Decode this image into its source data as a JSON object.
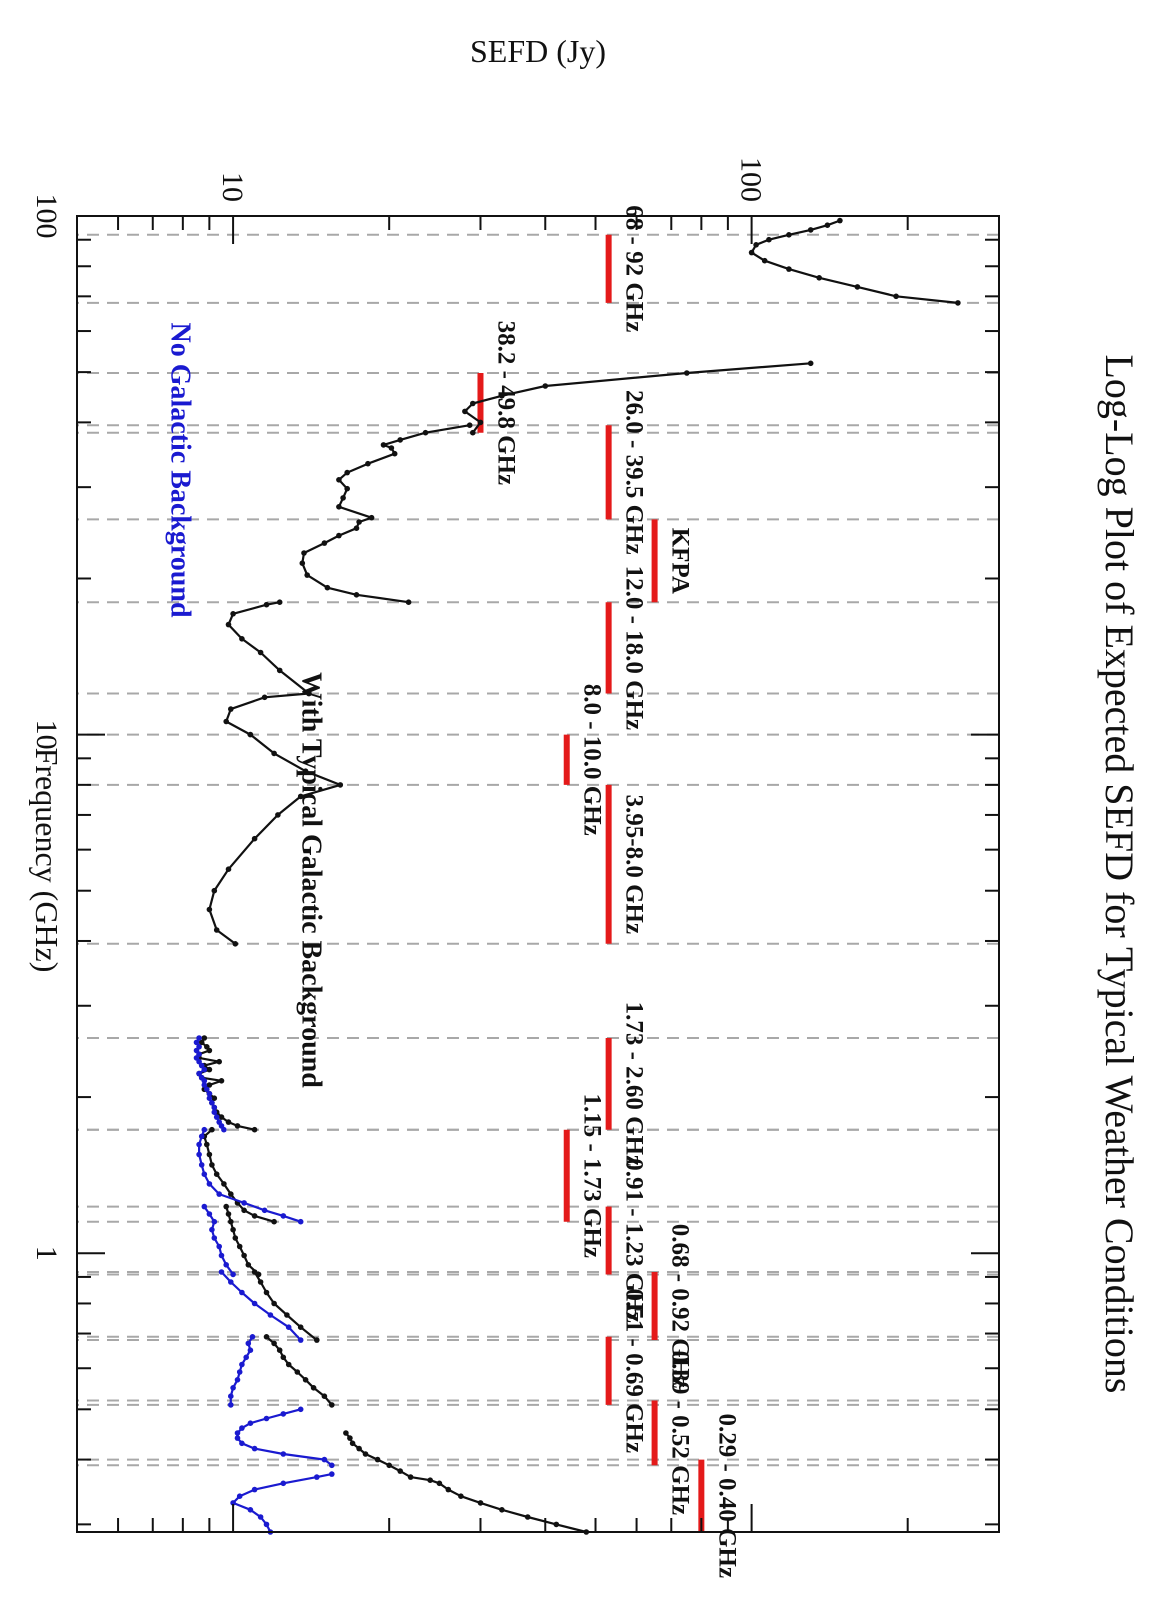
{
  "chart_data": {
    "type": "line",
    "title": "Log-Log Plot of Expected SEFD for Typical Weather Conditions",
    "xlabel": "Frequency (GHz)",
    "ylabel": "SEFD (Jy)",
    "x_scale": "log",
    "y_scale": "log",
    "xlim": [
      0.29,
      100
    ],
    "ylim": [
      5,
      300
    ],
    "x_ticks": [
      {
        "value": 1,
        "label": "1"
      },
      {
        "value": 10,
        "label": "10"
      },
      {
        "value": 100,
        "label": "100"
      }
    ],
    "y_ticks": [
      {
        "value": 10,
        "label": "10"
      },
      {
        "value": 100,
        "label": "100"
      }
    ],
    "grid": "dashed vertical lines at band edges",
    "band_edges": [
      0.29,
      0.4,
      0.39,
      0.52,
      0.51,
      0.69,
      0.68,
      0.92,
      0.91,
      1.23,
      1.15,
      1.73,
      1.73,
      2.6,
      3.95,
      8.0,
      10.0,
      12.0,
      18.0,
      26.0,
      39.5,
      38.2,
      49.8,
      68,
      92
    ],
    "bands": [
      {
        "label": "0.29 - 0.40 GHz",
        "fmin": 0.29,
        "fmax": 0.4,
        "level": 80
      },
      {
        "label": "0.39 - 0.52 GHz",
        "fmin": 0.39,
        "fmax": 0.52,
        "level": 65
      },
      {
        "label": "0.51 - 0.69 GHz",
        "fmin": 0.51,
        "fmax": 0.69,
        "level": 53
      },
      {
        "label": "0.68 - 0.92 GHz",
        "fmin": 0.68,
        "fmax": 0.92,
        "level": 65
      },
      {
        "label": "0.91 - 1.23 GHz",
        "fmin": 0.91,
        "fmax": 1.23,
        "level": 53
      },
      {
        "label": "1.15 - 1.73 GHz",
        "fmin": 1.15,
        "fmax": 1.73,
        "level": 44
      },
      {
        "label": "1.73 - 2.60 GHz",
        "fmin": 1.73,
        "fmax": 2.6,
        "level": 53
      },
      {
        "label": "3.95-8.0 GHz",
        "fmin": 3.95,
        "fmax": 8.0,
        "level": 53
      },
      {
        "label": "8.0 - 10.0 GHz",
        "fmin": 8.0,
        "fmax": 10.0,
        "level": 44
      },
      {
        "label": "12.0 - 18.0 GHz",
        "fmin": 12.0,
        "fmax": 18.0,
        "level": 53
      },
      {
        "label": "KFPA",
        "fmin": 18.0,
        "fmax": 26.0,
        "level": 65
      },
      {
        "label": "26.0 - 39.5 GHz",
        "fmin": 26.0,
        "fmax": 39.5,
        "level": 53
      },
      {
        "label": "38.2 - 49.8 GHz",
        "fmin": 38.2,
        "fmax": 49.8,
        "level": 30
      },
      {
        "label": "68 - 92 GHz",
        "fmin": 68,
        "fmax": 92,
        "level": 53
      }
    ],
    "annotations": [
      {
        "text": "With Typical Galactic Background",
        "color": "#111111"
      },
      {
        "text": "No Galactic Background",
        "color": "#1a1ad0"
      }
    ],
    "series": [
      {
        "name": "With Typical Galactic Background",
        "color": "#111111",
        "segments": [
          [
            [
              0.29,
              48
            ],
            [
              0.3,
              42
            ],
            [
              0.31,
              37
            ],
            [
              0.32,
              33
            ],
            [
              0.33,
              30
            ],
            [
              0.34,
              27.5
            ],
            [
              0.35,
              26
            ],
            [
              0.36,
              25
            ],
            [
              0.365,
              24
            ],
            [
              0.37,
              22
            ],
            [
              0.38,
              21
            ],
            [
              0.39,
              20
            ],
            [
              0.4,
              19
            ],
            [
              0.41,
              18
            ],
            [
              0.42,
              17.5
            ],
            [
              0.43,
              17
            ],
            [
              0.44,
              16.8
            ],
            [
              0.45,
              16.5
            ]
          ],
          [
            [
              0.51,
              15.5
            ],
            [
              0.53,
              15
            ],
            [
              0.55,
              14.3
            ],
            [
              0.57,
              13.8
            ],
            [
              0.59,
              13.3
            ],
            [
              0.61,
              12.8
            ],
            [
              0.63,
              12.5
            ],
            [
              0.65,
              12.3
            ],
            [
              0.67,
              12
            ],
            [
              0.69,
              11.6
            ]
          ],
          [
            [
              0.68,
              14.5
            ],
            [
              0.72,
              13.5
            ],
            [
              0.76,
              12.7
            ],
            [
              0.8,
              12
            ],
            [
              0.84,
              11.6
            ],
            [
              0.88,
              11.3
            ],
            [
              0.92,
              11
            ]
          ],
          [
            [
              0.91,
              11.2
            ],
            [
              0.95,
              10.7
            ],
            [
              0.99,
              10.5
            ],
            [
              1.03,
              10.3
            ],
            [
              1.07,
              10.1
            ],
            [
              1.11,
              10
            ],
            [
              1.15,
              9.9
            ],
            [
              1.19,
              9.8
            ],
            [
              1.23,
              9.7
            ]
          ],
          [
            [
              1.15,
              12
            ],
            [
              1.18,
              11
            ],
            [
              1.21,
              10.5
            ],
            [
              1.25,
              10.2
            ],
            [
              1.3,
              9.9
            ],
            [
              1.36,
              9.6
            ],
            [
              1.42,
              9.3
            ],
            [
              1.48,
              9.1
            ],
            [
              1.55,
              9.0
            ],
            [
              1.62,
              8.9
            ],
            [
              1.68,
              8.8
            ],
            [
              1.73,
              9.1
            ]
          ],
          [
            [
              1.73,
              11.0
            ],
            [
              1.76,
              10.2
            ],
            [
              1.79,
              9.8
            ],
            [
              1.83,
              9.5
            ],
            [
              1.87,
              9.3
            ],
            [
              1.91,
              9.2
            ],
            [
              1.95,
              9.1
            ],
            [
              1.99,
              9.2
            ],
            [
              2.03,
              9.0
            ],
            [
              2.07,
              8.8
            ],
            [
              2.11,
              9.0
            ],
            [
              2.15,
              9.5
            ],
            [
              2.18,
              8.7
            ],
            [
              2.22,
              8.6
            ],
            [
              2.26,
              9.0
            ],
            [
              2.3,
              8.8
            ],
            [
              2.34,
              9.4
            ],
            [
              2.38,
              8.6
            ],
            [
              2.42,
              8.6
            ],
            [
              2.46,
              9.0
            ],
            [
              2.5,
              8.9
            ],
            [
              2.55,
              8.7
            ],
            [
              2.6,
              8.8
            ]
          ],
          [
            [
              3.95,
              10.1
            ],
            [
              4.2,
              9.3
            ],
            [
              4.6,
              9.0
            ],
            [
              5.0,
              9.2
            ],
            [
              5.5,
              9.8
            ],
            [
              6.3,
              11
            ],
            [
              7.0,
              12.2
            ],
            [
              7.6,
              13.5
            ],
            [
              8.0,
              16.1
            ],
            [
              8.5,
              13.8
            ],
            [
              9.2,
              12.0
            ],
            [
              10.0,
              10.8
            ],
            [
              10.6,
              9.7
            ],
            [
              11.2,
              9.9
            ],
            [
              11.8,
              11.5
            ],
            [
              12.0,
              14.0
            ]
          ],
          [
            [
              12.0,
              14.0
            ],
            [
              13.3,
              12.3
            ],
            [
              14.4,
              11.3
            ],
            [
              15.3,
              10.4
            ],
            [
              16.3,
              9.8
            ],
            [
              17.1,
              10.0
            ],
            [
              17.8,
              11.6
            ],
            [
              18.0,
              12.3
            ]
          ],
          [
            [
              18.0,
              21.8
            ],
            [
              18.6,
              17.3
            ],
            [
              19.2,
              15.2
            ],
            [
              20.3,
              13.9
            ],
            [
              21.4,
              13.6
            ],
            [
              22.4,
              13.7
            ],
            [
              23.4,
              15.0
            ],
            [
              24.2,
              16.0
            ],
            [
              25.0,
              17.3
            ],
            [
              25.7,
              17.5
            ],
            [
              26.2,
              18.5
            ],
            [
              27.5,
              16.0
            ],
            [
              28.6,
              16.3
            ],
            [
              29.8,
              16.6
            ],
            [
              31.0,
              16.0
            ],
            [
              32.0,
              16.6
            ],
            [
              33.3,
              18.2
            ],
            [
              34.8,
              20.5
            ],
            [
              35.7,
              20.2
            ],
            [
              36.2,
              19.5
            ],
            [
              37.0,
              21.0
            ],
            [
              38.2,
              23.5
            ],
            [
              39.5,
              28.6
            ]
          ],
          [
            [
              38.2,
              29
            ],
            [
              40.0,
              30
            ],
            [
              42.0,
              28
            ],
            [
              43.5,
              29
            ],
            [
              45,
              33
            ],
            [
              47,
              40
            ],
            [
              49.8,
              75
            ],
            [
              52,
              130
            ]
          ],
          [
            [
              68,
              250
            ],
            [
              70,
              190
            ],
            [
              73,
              160
            ],
            [
              76,
              135
            ],
            [
              79,
              118
            ],
            [
              82,
              106
            ],
            [
              85,
              100
            ],
            [
              88,
              102
            ],
            [
              90,
              108
            ],
            [
              92,
              118
            ],
            [
              94,
              130
            ],
            [
              96,
              140
            ],
            [
              98,
              148
            ]
          ]
        ]
      },
      {
        "name": "No Galactic Background",
        "color": "#1a1ad0",
        "segments": [
          [
            [
              0.29,
              11.8
            ],
            [
              0.3,
              11.6
            ],
            [
              0.31,
              11.3
            ],
            [
              0.32,
              10.8
            ],
            [
              0.33,
              10
            ],
            [
              0.34,
              10.3
            ],
            [
              0.35,
              11
            ],
            [
              0.36,
              12.5
            ],
            [
              0.37,
              14.5
            ],
            [
              0.375,
              15.5
            ]
          ],
          [
            [
              0.39,
              15.5
            ],
            [
              0.4,
              15
            ],
            [
              0.41,
              12.5
            ],
            [
              0.42,
              11
            ],
            [
              0.43,
              10.4
            ],
            [
              0.44,
              10.2
            ],
            [
              0.45,
              10.2
            ],
            [
              0.46,
              10.4
            ],
            [
              0.47,
              10.8
            ],
            [
              0.48,
              11.6
            ],
            [
              0.49,
              12.5
            ],
            [
              0.5,
              13.5
            ]
          ],
          [
            [
              0.51,
              9.9
            ],
            [
              0.53,
              9.9
            ],
            [
              0.55,
              10.0
            ],
            [
              0.57,
              10.2
            ],
            [
              0.59,
              10.3
            ],
            [
              0.61,
              10.4
            ],
            [
              0.63,
              10.6
            ],
            [
              0.65,
              10.8
            ],
            [
              0.67,
              10.7
            ],
            [
              0.69,
              10.9
            ]
          ],
          [
            [
              0.68,
              13.5
            ],
            [
              0.72,
              12.8
            ],
            [
              0.76,
              11.8
            ],
            [
              0.8,
              11.0
            ],
            [
              0.84,
              10.4
            ],
            [
              0.88,
              9.9
            ],
            [
              0.92,
              9.5
            ]
          ],
          [
            [
              0.91,
              10.0
            ],
            [
              0.95,
              9.7
            ],
            [
              0.99,
              9.5
            ],
            [
              1.03,
              9.4
            ],
            [
              1.07,
              9.2
            ],
            [
              1.11,
              9.1
            ],
            [
              1.15,
              9.2
            ],
            [
              1.19,
              9.0
            ],
            [
              1.23,
              8.8
            ]
          ],
          [
            [
              1.15,
              13.5
            ],
            [
              1.18,
              12.5
            ],
            [
              1.21,
              11.5
            ],
            [
              1.25,
              10.5
            ],
            [
              1.3,
              9.4
            ],
            [
              1.36,
              9.0
            ],
            [
              1.42,
              8.8
            ],
            [
              1.48,
              8.7
            ],
            [
              1.55,
              8.6
            ],
            [
              1.62,
              8.6
            ],
            [
              1.68,
              8.7
            ],
            [
              1.73,
              8.8
            ]
          ],
          [
            [
              1.73,
              9.6
            ],
            [
              1.76,
              9.5
            ],
            [
              1.79,
              9.4
            ],
            [
              1.83,
              9.3
            ],
            [
              1.87,
              9.2
            ],
            [
              1.91,
              9.2
            ],
            [
              1.95,
              9.1
            ],
            [
              1.99,
              9.0
            ],
            [
              2.03,
              9.0
            ],
            [
              2.07,
              8.9
            ],
            [
              2.11,
              8.8
            ],
            [
              2.15,
              8.8
            ],
            [
              2.18,
              8.7
            ],
            [
              2.22,
              8.6
            ],
            [
              2.26,
              8.8
            ],
            [
              2.3,
              8.7
            ],
            [
              2.34,
              8.6
            ],
            [
              2.38,
              8.5
            ],
            [
              2.42,
              8.6
            ],
            [
              2.46,
              8.5
            ],
            [
              2.5,
              8.6
            ],
            [
              2.55,
              8.5
            ],
            [
              2.6,
              8.6
            ]
          ]
        ]
      }
    ]
  }
}
